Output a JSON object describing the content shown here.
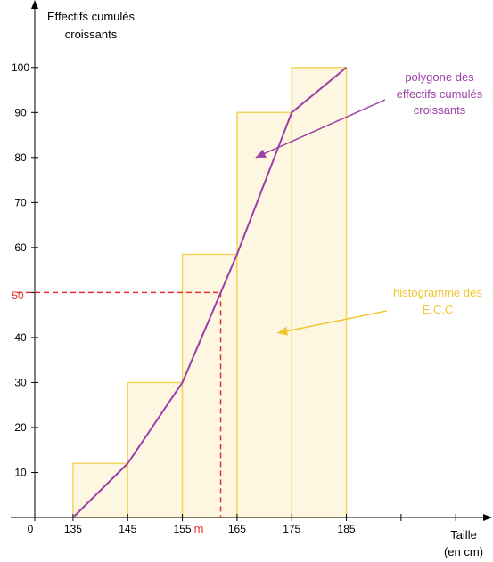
{
  "chart_data": {
    "type": "line",
    "ylabel_lines": [
      "Effectifs cumulés",
      "croissants"
    ],
    "xlabel_lines": [
      "Taille",
      "(en cm)"
    ],
    "x_origin_label": "0",
    "x_ticks": [
      135,
      145,
      155,
      165,
      175,
      185
    ],
    "y_ticks": [
      10,
      20,
      30,
      40,
      50,
      60,
      70,
      80,
      90,
      100
    ],
    "xlim": [
      128,
      211
    ],
    "ylim": [
      0,
      115
    ],
    "histogram": {
      "name": "histogramme des E.C.C",
      "bins": [
        {
          "from": 135,
          "to": 145,
          "value": 12
        },
        {
          "from": 145,
          "to": 155,
          "value": 30
        },
        {
          "from": 155,
          "to": 165,
          "value": 58.5
        },
        {
          "from": 165,
          "to": 175,
          "value": 90
        },
        {
          "from": 175,
          "to": 185,
          "value": 100
        }
      ],
      "fill": "#fdf6e1",
      "stroke": "#f5d55c"
    },
    "series": [
      {
        "name": "polygone des effectifs cumulés croissants",
        "color": "#9b3fa7",
        "x": [
          135,
          145,
          155,
          165,
          175,
          185
        ],
        "y": [
          0,
          12,
          30,
          58.5,
          90,
          100
        ]
      }
    ],
    "median_marker": {
      "x": 162,
      "y": 50,
      "x_label": "m",
      "y_label": "50",
      "color": "#e03030"
    },
    "annotations": [
      {
        "lines": [
          "polygone des",
          "effectifs cumulés",
          "croissants"
        ],
        "color": "#9b3fa7",
        "arrow_to": [
          168.4,
          80
        ]
      },
      {
        "lines": [
          "histogramme des",
          "E.C.C"
        ],
        "color": "#f0c630",
        "arrow_to": [
          172.4,
          41
        ]
      }
    ],
    "grid": false
  }
}
